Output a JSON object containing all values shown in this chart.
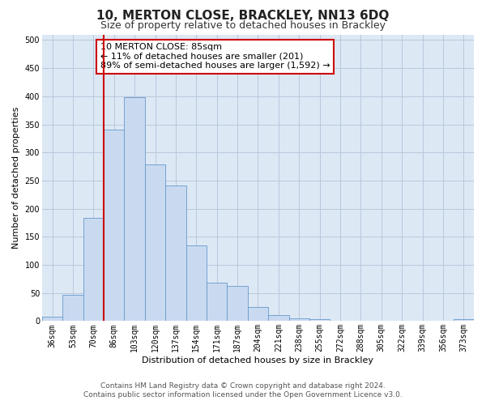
{
  "title": "10, MERTON CLOSE, BRACKLEY, NN13 6DQ",
  "subtitle": "Size of property relative to detached houses in Brackley",
  "xlabel": "Distribution of detached houses by size in Brackley",
  "ylabel": "Number of detached properties",
  "bin_labels": [
    "36sqm",
    "53sqm",
    "70sqm",
    "86sqm",
    "103sqm",
    "120sqm",
    "137sqm",
    "154sqm",
    "171sqm",
    "187sqm",
    "204sqm",
    "221sqm",
    "238sqm",
    "255sqm",
    "272sqm",
    "288sqm",
    "305sqm",
    "322sqm",
    "339sqm",
    "356sqm",
    "373sqm"
  ],
  "bar_values": [
    8,
    46,
    183,
    340,
    398,
    278,
    241,
    135,
    68,
    62,
    25,
    11,
    5,
    3,
    1,
    1,
    1,
    0,
    0,
    0,
    3
  ],
  "bar_color": "#c9daf0",
  "bar_edge_color": "#6699cc",
  "property_line_color": "#cc0000",
  "ylim": [
    0,
    510
  ],
  "yticks": [
    0,
    50,
    100,
    150,
    200,
    250,
    300,
    350,
    400,
    450,
    500
  ],
  "annotation_text_line1": "10 MERTON CLOSE: 85sqm",
  "annotation_text_line2": "← 11% of detached houses are smaller (201)",
  "annotation_text_line3": "89% of semi-detached houses are larger (1,592) →",
  "annotation_box_color": "#ffffff",
  "annotation_box_edge_color": "#cc0000",
  "footer_line1": "Contains HM Land Registry data © Crown copyright and database right 2024.",
  "footer_line2": "Contains public sector information licensed under the Open Government Licence v3.0.",
  "background_color": "#ffffff",
  "plot_bg_color": "#dde8f5",
  "grid_color": "#b8c8dc",
  "title_fontsize": 11,
  "subtitle_fontsize": 9,
  "axis_label_fontsize": 8,
  "tick_fontsize": 7,
  "annotation_fontsize": 8,
  "footer_fontsize": 6.5
}
